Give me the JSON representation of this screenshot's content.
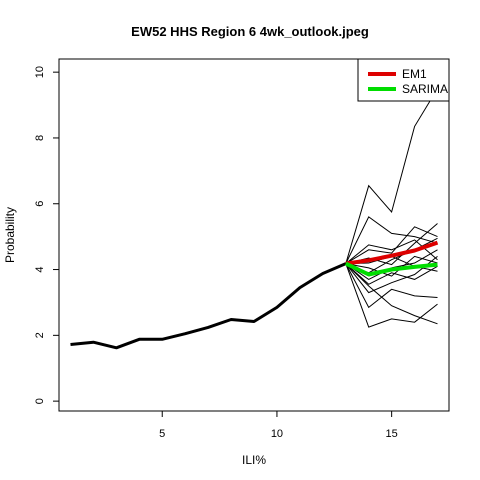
{
  "chart_data": {
    "type": "line",
    "title": "EW52 HHS Region 6 4wk_outlook.jpeg",
    "xlabel": "ILI%",
    "ylabel": "Probability",
    "xlim": [
      0.5,
      17.5
    ],
    "ylim": [
      -0.3,
      10.4
    ],
    "xticks": [
      5,
      10,
      15
    ],
    "yticks": [
      0,
      2,
      4,
      6,
      8,
      10
    ],
    "grid": false,
    "legend_position": "top-right",
    "observed": {
      "x": [
        1,
        2,
        3,
        4,
        5,
        6,
        7,
        8,
        9,
        10,
        11,
        12,
        13
      ],
      "y": [
        1.72,
        1.79,
        1.62,
        1.88,
        1.88,
        2.05,
        2.24,
        2.48,
        2.42,
        2.85,
        3.45,
        3.88,
        4.18
      ],
      "color": "#000000"
    },
    "ensemble": [
      {
        "x": [
          13,
          14,
          15,
          16,
          17
        ],
        "y": [
          4.18,
          6.55,
          5.75,
          8.35,
          9.5
        ]
      },
      {
        "x": [
          13,
          14,
          15,
          16,
          17
        ],
        "y": [
          4.18,
          4.6,
          4.5,
          5.3,
          5.0
        ]
      },
      {
        "x": [
          13,
          14,
          15,
          16,
          17
        ],
        "y": [
          4.18,
          5.6,
          5.1,
          5.0,
          4.8
        ]
      },
      {
        "x": [
          13,
          14,
          15,
          16,
          17
        ],
        "y": [
          4.18,
          2.25,
          2.5,
          2.4,
          2.95
        ]
      },
      {
        "x": [
          13,
          14,
          15,
          16,
          17
        ],
        "y": [
          4.18,
          2.85,
          3.4,
          3.2,
          3.15
        ]
      },
      {
        "x": [
          13,
          14,
          15,
          16,
          17
        ],
        "y": [
          4.18,
          3.5,
          2.9,
          2.6,
          2.35
        ]
      },
      {
        "x": [
          13,
          14,
          15,
          16,
          17
        ],
        "y": [
          4.18,
          4.35,
          4.15,
          4.8,
          5.4
        ]
      },
      {
        "x": [
          13,
          14,
          15,
          16,
          17
        ],
        "y": [
          4.18,
          3.9,
          4.3,
          4.6,
          4.95
        ]
      },
      {
        "x": [
          13,
          14,
          15,
          16,
          17
        ],
        "y": [
          4.18,
          4.05,
          3.8,
          4.4,
          4.2
        ]
      },
      {
        "x": [
          13,
          14,
          15,
          16,
          17
        ],
        "y": [
          4.18,
          3.7,
          4.05,
          4.2,
          4.6
        ]
      },
      {
        "x": [
          13,
          14,
          15,
          16,
          17
        ],
        "y": [
          4.18,
          3.55,
          3.9,
          3.7,
          4.1
        ]
      },
      {
        "x": [
          13,
          14,
          15,
          16,
          17
        ],
        "y": [
          4.18,
          4.2,
          4.4,
          4.1,
          3.95
        ]
      },
      {
        "x": [
          13,
          14,
          15,
          16,
          17
        ],
        "y": [
          4.18,
          3.3,
          3.6,
          3.85,
          4.4
        ]
      },
      {
        "x": [
          13,
          14,
          15,
          16,
          17
        ],
        "y": [
          4.18,
          4.75,
          4.6,
          4.9,
          4.3
        ]
      }
    ],
    "series": [
      {
        "name": "EM1",
        "color": "#dd0000",
        "x": [
          13,
          14,
          15,
          16,
          17
        ],
        "y": [
          4.18,
          4.28,
          4.42,
          4.58,
          4.82
        ]
      },
      {
        "name": "SARIMA",
        "color": "#00dd00",
        "x": [
          13,
          14,
          15,
          16,
          17
        ],
        "y": [
          4.18,
          3.85,
          4.0,
          4.08,
          4.15
        ]
      }
    ]
  }
}
